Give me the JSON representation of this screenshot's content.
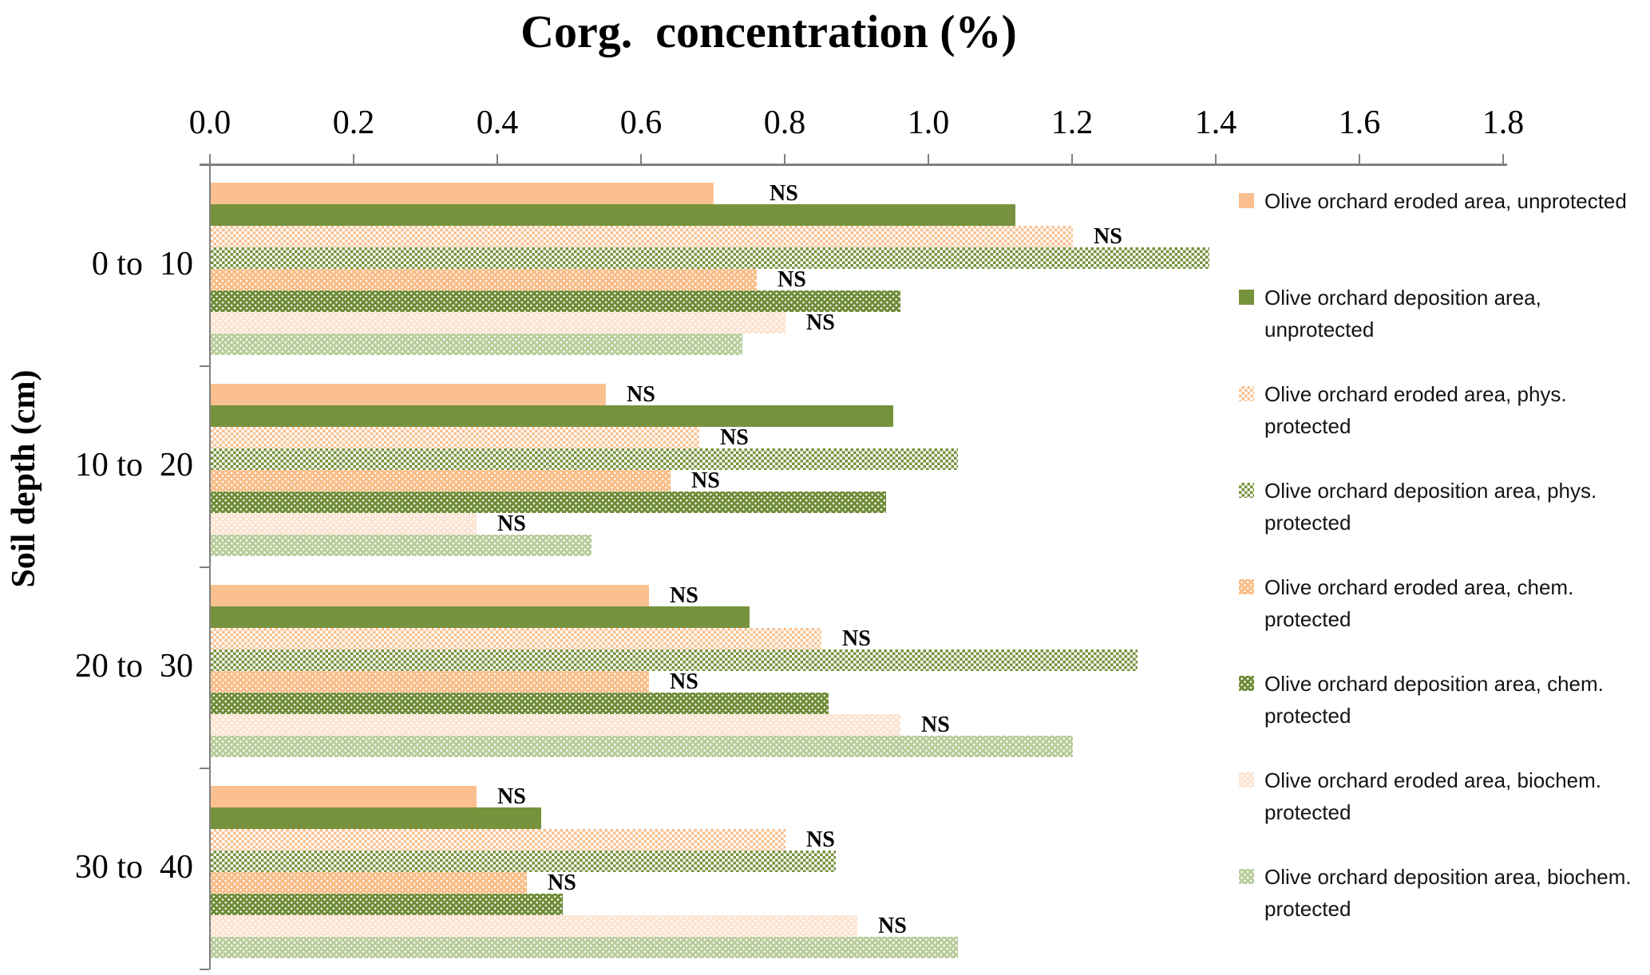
{
  "chart_data": {
    "type": "bar",
    "orientation": "horizontal",
    "title": "Corg.  concentration (%)",
    "ylabel": "Soil depth (cm)",
    "xlabel": "",
    "xlim": [
      0.0,
      1.8
    ],
    "x_ticks": [
      "0.0",
      "0.2",
      "0.4",
      "0.6",
      "0.8",
      "1.0",
      "1.2",
      "1.4",
      "1.6",
      "1.8"
    ],
    "grid": false,
    "legend_position": "right",
    "annotation_label": "NS",
    "categories": [
      "0 to  10",
      "10 to  20",
      "20 to  30",
      "30 to  40"
    ],
    "series": [
      {
        "name": "Olive orchard eroded area, unprotected",
        "pattern": "solid",
        "color": "#FAC090",
        "values": [
          0.7,
          0.55,
          0.61,
          0.37
        ],
        "ns": true
      },
      {
        "name": "Olive orchard deposition area, unprotected",
        "pattern": "solid",
        "color": "#77923D",
        "values": [
          1.12,
          0.95,
          0.75,
          0.46
        ],
        "ns": false
      },
      {
        "name": "Olive orchard eroded area, phys. protected",
        "pattern": "checker",
        "color": "#F9C190",
        "values": [
          1.2,
          0.68,
          0.85,
          0.8
        ],
        "ns": true
      },
      {
        "name": "Olive orchard deposition area, phys. protected",
        "pattern": "checker",
        "color": "#77923D",
        "values": [
          1.39,
          1.04,
          1.29,
          0.87
        ],
        "ns": false
      },
      {
        "name": "Olive orchard eroded area, chem. protected",
        "pattern": "dots",
        "color": "#F9BD87",
        "values": [
          0.76,
          0.64,
          0.61,
          0.44
        ],
        "ns": true
      },
      {
        "name": "Olive orchard deposition area, chem. protected",
        "pattern": "dots",
        "color": "#6F8C38",
        "values": [
          0.96,
          0.94,
          0.86,
          0.49
        ],
        "ns": false
      },
      {
        "name": "Olive orchard eroded area, biochem. protected",
        "pattern": "dots",
        "color": "#FCE4D2",
        "values": [
          0.8,
          0.37,
          0.96,
          0.9
        ],
        "ns": true
      },
      {
        "name": "Olive orchard deposition area, biochem. protected",
        "pattern": "dots",
        "color": "#B9CD9B",
        "values": [
          0.74,
          0.53,
          1.2,
          1.04
        ],
        "ns": false
      }
    ]
  }
}
